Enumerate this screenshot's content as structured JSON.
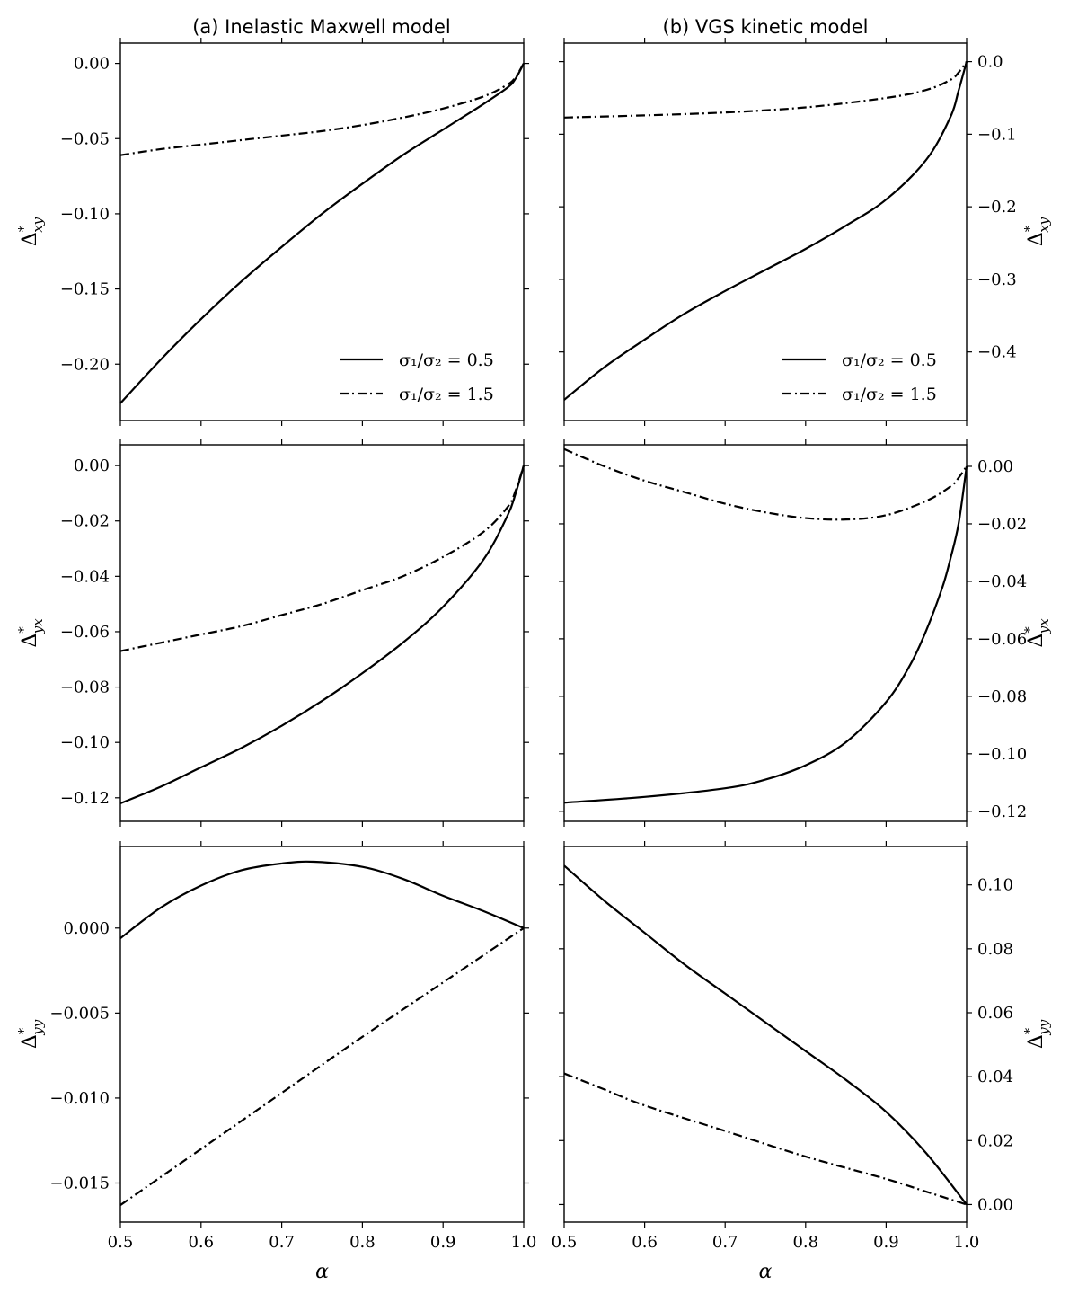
{
  "figure": {
    "col_titles": [
      "(a) Inelastic Maxwell model",
      "(b) VGS kinetic model"
    ],
    "xlabel": "α",
    "legend": [
      "σ₁/σ₂ = 0.5",
      "σ₁/σ₂ = 1.5"
    ]
  },
  "chart_data": [
    {
      "type": "line",
      "panel": "top-left",
      "ylabel": "Δ*_xy",
      "xlim": [
        0.5,
        1.0
      ],
      "ylim": [
        -0.2375,
        0.0135
      ],
      "xticks": [
        0.5,
        0.6,
        0.7,
        0.8,
        0.9,
        1.0
      ],
      "yticks": [
        "0.00",
        "−0.05",
        "−0.10",
        "−0.15",
        "−0.20"
      ],
      "ytick_values": [
        0.0,
        -0.05,
        -0.1,
        -0.15,
        -0.2
      ],
      "legend_placement": "lower-right",
      "series": [
        {
          "name": "σ₁/σ₂ = 0.5",
          "style": "solid",
          "x": [
            0.5,
            0.55,
            0.6,
            0.65,
            0.7,
            0.75,
            0.8,
            0.85,
            0.9,
            0.95,
            0.98,
            0.99,
            1.0
          ],
          "y": [
            -0.226,
            -0.197,
            -0.17,
            -0.145,
            -0.122,
            -0.1,
            -0.08,
            -0.061,
            -0.044,
            -0.027,
            -0.016,
            -0.01,
            0.0
          ]
        },
        {
          "name": "σ₁/σ₂ = 1.5",
          "style": "dashdot",
          "x": [
            0.5,
            0.55,
            0.6,
            0.65,
            0.7,
            0.75,
            0.8,
            0.85,
            0.9,
            0.95,
            0.98,
            0.99,
            1.0
          ],
          "y": [
            -0.061,
            -0.057,
            -0.054,
            -0.051,
            -0.048,
            -0.045,
            -0.041,
            -0.036,
            -0.03,
            -0.022,
            -0.014,
            -0.009,
            0.0
          ]
        }
      ]
    },
    {
      "type": "line",
      "panel": "top-right",
      "ylabel": "Δ*_xy",
      "xlim": [
        0.5,
        1.0
      ],
      "ylim": [
        -0.4945,
        0.0255
      ],
      "xticks": [
        0.5,
        0.6,
        0.7,
        0.8,
        0.9,
        1.0
      ],
      "yticks": [
        "0.0",
        "−0.1",
        "−0.2",
        "−0.3",
        "−0.4"
      ],
      "ytick_values": [
        0.0,
        -0.1,
        -0.2,
        -0.3,
        -0.4
      ],
      "legend_placement": "lower-right",
      "series": [
        {
          "name": "σ₁/σ₂ = 0.5",
          "style": "solid",
          "x": [
            0.5,
            0.55,
            0.6,
            0.65,
            0.7,
            0.75,
            0.8,
            0.85,
            0.9,
            0.95,
            0.98,
            0.99,
            1.0
          ],
          "y": [
            -0.466,
            -0.421,
            -0.383,
            -0.347,
            -0.316,
            -0.287,
            -0.258,
            -0.226,
            -0.19,
            -0.135,
            -0.076,
            -0.04,
            0.0
          ]
        },
        {
          "name": "σ₁/σ₂ = 1.5",
          "style": "dashdot",
          "x": [
            0.5,
            0.6,
            0.7,
            0.8,
            0.9,
            0.95,
            0.98,
            0.99,
            1.0
          ],
          "y": [
            -0.077,
            -0.074,
            -0.07,
            -0.063,
            -0.05,
            -0.039,
            -0.025,
            -0.015,
            0.0
          ]
        }
      ]
    },
    {
      "type": "line",
      "panel": "middle-left",
      "ylabel": "Δ*_yx",
      "xlim": [
        0.5,
        1.0
      ],
      "ylim": [
        -0.1285,
        0.0075
      ],
      "xticks": [
        0.5,
        0.6,
        0.7,
        0.8,
        0.9,
        1.0
      ],
      "yticks": [
        "0.00",
        "−0.02",
        "−0.04",
        "−0.06",
        "−0.08",
        "−0.10",
        "−0.12"
      ],
      "ytick_values": [
        0.0,
        -0.02,
        -0.04,
        -0.06,
        -0.08,
        -0.1,
        -0.12
      ],
      "series": [
        {
          "name": "σ₁/σ₂ = 0.5",
          "style": "solid",
          "x": [
            0.5,
            0.55,
            0.6,
            0.65,
            0.7,
            0.75,
            0.8,
            0.85,
            0.9,
            0.95,
            0.98,
            0.99,
            1.0
          ],
          "y": [
            -0.122,
            -0.116,
            -0.109,
            -0.102,
            -0.094,
            -0.085,
            -0.075,
            -0.064,
            -0.051,
            -0.034,
            -0.018,
            -0.01,
            0.0
          ]
        },
        {
          "name": "σ₁/σ₂ = 1.5",
          "style": "dashdot",
          "x": [
            0.5,
            0.55,
            0.6,
            0.65,
            0.7,
            0.75,
            0.8,
            0.85,
            0.9,
            0.95,
            0.98,
            0.99,
            1.0
          ],
          "y": [
            -0.067,
            -0.064,
            -0.061,
            -0.058,
            -0.054,
            -0.05,
            -0.045,
            -0.04,
            -0.033,
            -0.024,
            -0.015,
            -0.009,
            0.0
          ]
        }
      ]
    },
    {
      "type": "line",
      "panel": "middle-right",
      "ylabel": "Δ*_yx",
      "xlim": [
        0.5,
        1.0
      ],
      "ylim": [
        -0.1235,
        0.0075
      ],
      "xticks": [
        0.5,
        0.6,
        0.7,
        0.8,
        0.9,
        1.0
      ],
      "yticks": [
        "0.00",
        "−0.02",
        "−0.04",
        "−0.06",
        "−0.08",
        "−0.10",
        "−0.12"
      ],
      "ytick_values": [
        0.0,
        -0.02,
        -0.04,
        -0.06,
        -0.08,
        -0.1,
        -0.12
      ],
      "series": [
        {
          "name": "σ₁/σ₂ = 0.5",
          "style": "solid",
          "x": [
            0.5,
            0.6,
            0.7,
            0.75,
            0.8,
            0.85,
            0.9,
            0.93,
            0.95,
            0.97,
            0.98,
            0.99,
            1.0
          ],
          "y": [
            -0.117,
            -0.115,
            -0.112,
            -0.109,
            -0.104,
            -0.096,
            -0.082,
            -0.069,
            -0.057,
            -0.042,
            -0.032,
            -0.02,
            0.0
          ]
        },
        {
          "name": "σ₁/σ₂ = 1.5",
          "style": "dashdot",
          "x": [
            0.5,
            0.55,
            0.6,
            0.65,
            0.7,
            0.75,
            0.8,
            0.85,
            0.9,
            0.95,
            0.98,
            0.99,
            1.0
          ],
          "y": [
            0.006,
            0.0,
            -0.005,
            -0.009,
            -0.013,
            -0.016,
            -0.018,
            -0.0185,
            -0.017,
            -0.012,
            -0.007,
            -0.004,
            0.0
          ]
        }
      ]
    },
    {
      "type": "line",
      "panel": "bottom-left",
      "ylabel": "Δ*_yy",
      "xlabel": "α",
      "xlim": [
        0.5,
        1.0
      ],
      "ylim": [
        -0.0173,
        0.0048
      ],
      "xticks": [
        0.5,
        0.6,
        0.7,
        0.8,
        0.9,
        1.0
      ],
      "xticklabels": [
        "0.5",
        "0.6",
        "0.7",
        "0.8",
        "0.9",
        "1.0"
      ],
      "yticks": [
        "0.000",
        "−0.005",
        "−0.010",
        "−0.015"
      ],
      "ytick_values": [
        0.0,
        -0.005,
        -0.01,
        -0.015
      ],
      "series": [
        {
          "name": "σ₁/σ₂ = 0.5",
          "style": "solid",
          "x": [
            0.5,
            0.55,
            0.6,
            0.65,
            0.7,
            0.74,
            0.8,
            0.85,
            0.9,
            0.95,
            1.0
          ],
          "y": [
            -0.0006,
            0.0012,
            0.0025,
            0.0034,
            0.0038,
            0.0039,
            0.0036,
            0.0029,
            0.0019,
            0.001,
            0.0
          ]
        },
        {
          "name": "σ₁/σ₂ = 1.5",
          "style": "dashdot",
          "x": [
            0.5,
            0.6,
            0.7,
            0.8,
            0.9,
            1.0
          ],
          "y": [
            -0.0163,
            -0.013,
            -0.0097,
            -0.0064,
            -0.0032,
            0.0
          ]
        }
      ]
    },
    {
      "type": "line",
      "panel": "bottom-right",
      "ylabel": "Δ*_yy",
      "xlabel": "α",
      "xlim": [
        0.5,
        1.0
      ],
      "ylim": [
        -0.0055,
        0.112
      ],
      "xticks": [
        0.5,
        0.6,
        0.7,
        0.8,
        0.9,
        1.0
      ],
      "xticklabels": [
        "0.5",
        "0.6",
        "0.7",
        "0.8",
        "0.9",
        "1.0"
      ],
      "yticks": [
        "0.10",
        "0.08",
        "0.06",
        "0.04",
        "0.02",
        "0.00"
      ],
      "ytick_values": [
        0.1,
        0.08,
        0.06,
        0.04,
        0.02,
        0.0
      ],
      "series": [
        {
          "name": "σ₁/σ₂ = 0.5",
          "style": "solid",
          "x": [
            0.5,
            0.55,
            0.6,
            0.65,
            0.7,
            0.75,
            0.8,
            0.85,
            0.9,
            0.95,
            1.0
          ],
          "y": [
            0.106,
            0.095,
            0.085,
            0.075,
            0.066,
            0.057,
            0.048,
            0.039,
            0.029,
            0.016,
            0.0
          ]
        },
        {
          "name": "σ₁/σ₂ = 1.5",
          "style": "dashdot",
          "x": [
            0.5,
            0.55,
            0.6,
            0.7,
            0.8,
            0.9,
            0.95,
            1.0
          ],
          "y": [
            0.041,
            0.036,
            0.031,
            0.023,
            0.015,
            0.008,
            0.004,
            0.0
          ]
        }
      ]
    }
  ]
}
